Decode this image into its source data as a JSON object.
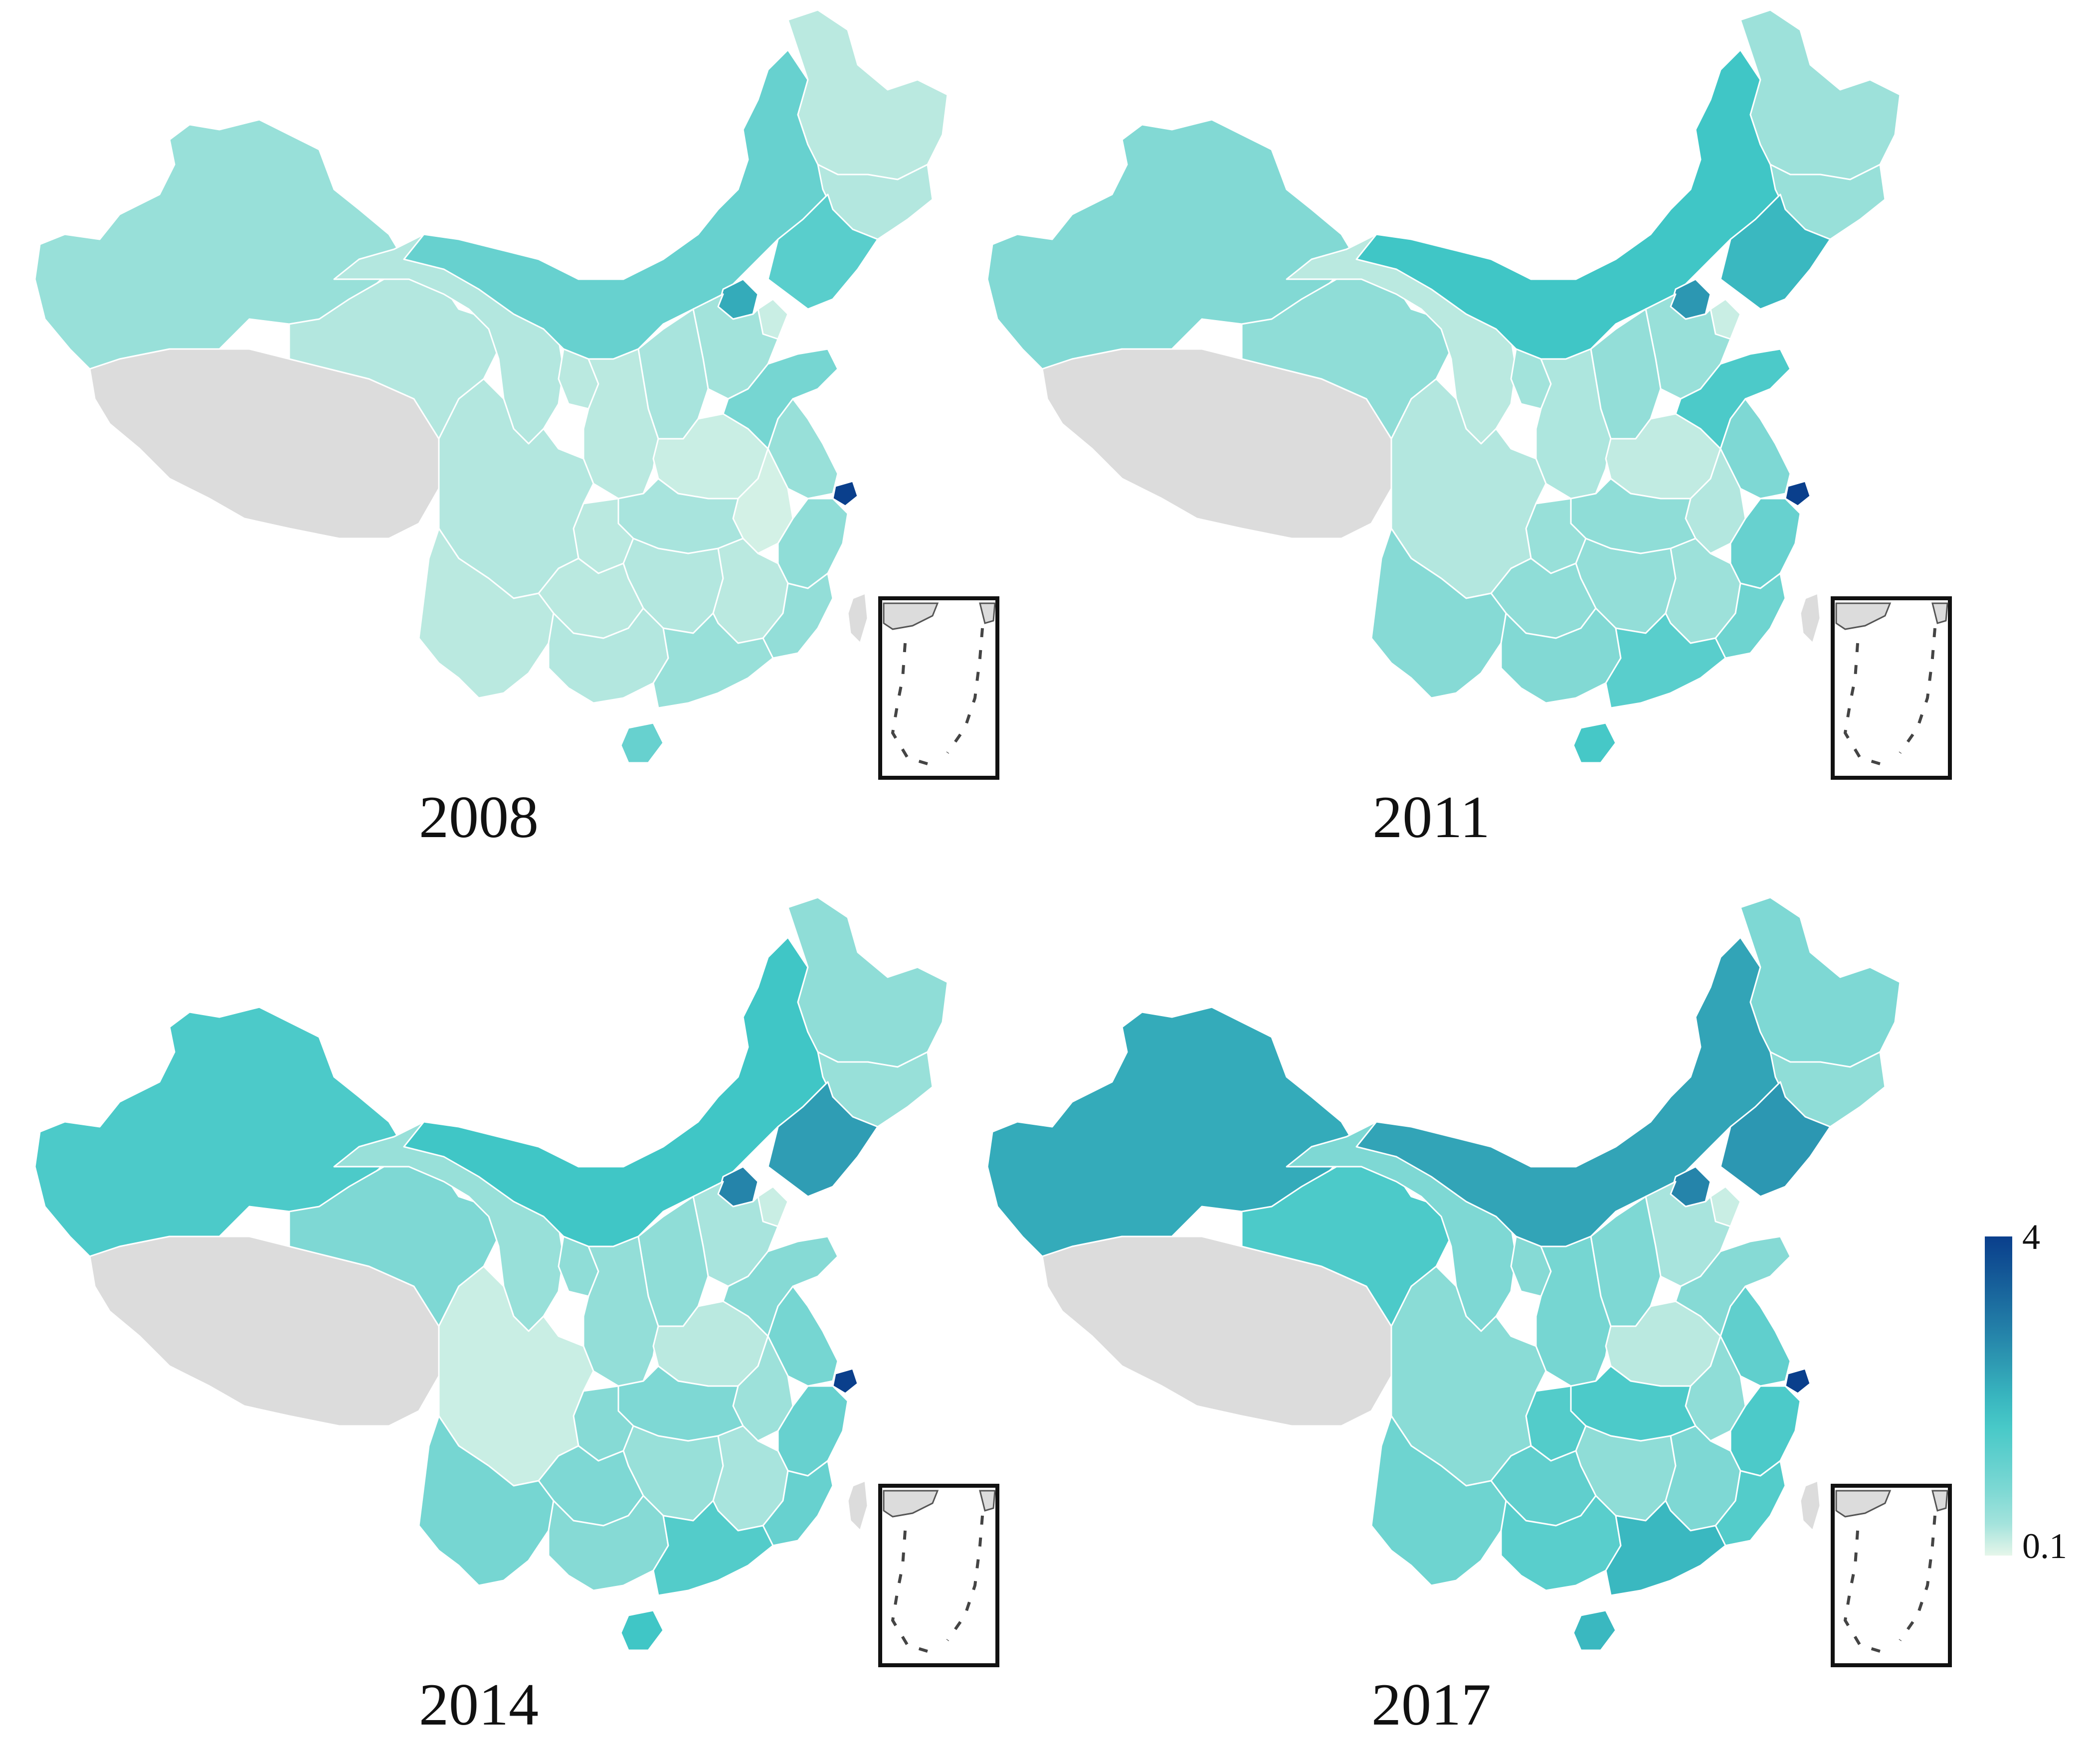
{
  "figure": {
    "panels": [
      {
        "year": "2008",
        "key": "p2008"
      },
      {
        "year": "2011",
        "key": "p2011"
      },
      {
        "year": "2014",
        "key": "p2014"
      },
      {
        "year": "2017",
        "key": "p2017"
      }
    ],
    "legend": {
      "max_label": "4",
      "min_label": "0.1",
      "max_value": 4,
      "min_value": 0.1,
      "color_low": "#e6f6ea",
      "color_mid": "#3fc6c6",
      "color_high": "#0a3f8c"
    },
    "no_data_color": "#dcdcdc",
    "region_values": {
      "p2008": {
        "xinjiang": 0.6,
        "tibet": null,
        "qinghai": 0.35,
        "gansu": 0.35,
        "inner_mongolia": 1.2,
        "heilongjiang": 0.3,
        "jilin": 0.35,
        "liaoning": 1.4,
        "beijing": 2.2,
        "tianjin": 0.2,
        "hebei": 0.5,
        "shanxi": 0.45,
        "shaanxi": 0.3,
        "ningxia": 0.3,
        "henan": 0.2,
        "shandong": 1.0,
        "jiangsu": 0.6,
        "anhui": 0.15,
        "shanghai": 4.0,
        "zhejiang": 0.7,
        "hubei": 0.45,
        "sichuan": 0.35,
        "chongqing": 0.3,
        "hunan": 0.35,
        "jiangxi": 0.3,
        "fujian": 0.65,
        "yunnan": 0.3,
        "guizhou": 0.3,
        "guangxi": 0.35,
        "guangdong": 0.6,
        "hainan": 1.2,
        "taiwan": null
      },
      "p2011": {
        "xinjiang": 0.85,
        "tibet": null,
        "qinghai": 0.7,
        "gansu": 0.3,
        "inner_mongolia": 1.8,
        "heilongjiang": 0.55,
        "jilin": 0.6,
        "liaoning": 2.0,
        "beijing": 2.5,
        "tianjin": 0.2,
        "hebei": 0.6,
        "shanxi": 0.65,
        "shaanxi": 0.4,
        "ningxia": 0.5,
        "henan": 0.25,
        "shandong": 1.6,
        "jiangsu": 0.9,
        "anhui": 0.35,
        "shanghai": 4.0,
        "zhejiang": 1.2,
        "hubei": 0.7,
        "sichuan": 0.35,
        "chongqing": 0.6,
        "hunan": 0.65,
        "jiangxi": 0.55,
        "fujian": 1.1,
        "yunnan": 0.8,
        "guizhou": 0.7,
        "guangxi": 0.85,
        "guangdong": 1.4,
        "hainan": 1.7,
        "taiwan": null
      },
      "p2014": {
        "xinjiang": 1.6,
        "tibet": null,
        "qinghai": 0.9,
        "gansu": 0.6,
        "inner_mongolia": 1.8,
        "heilongjiang": 0.7,
        "jilin": 0.6,
        "liaoning": 2.4,
        "beijing": 2.8,
        "tianjin": 0.2,
        "hebei": 0.45,
        "shanxi": 0.7,
        "shaanxi": 0.65,
        "ningxia": 0.7,
        "henan": 0.3,
        "shandong": 0.8,
        "jiangsu": 1.0,
        "anhui": 0.55,
        "shanshai": 4.0,
        "shanghai": 4.0,
        "zhejiang": 1.2,
        "hubei": 0.9,
        "sichuan": 0.2,
        "chongqing": 0.8,
        "hunan": 0.6,
        "jiangxi": 0.45,
        "fujian": 1.2,
        "yunnan": 1.0,
        "guizhou": 0.9,
        "guangxi": 0.8,
        "guangdong": 1.5,
        "hainan": 1.8,
        "taiwan": null
      },
      "p2017": {
        "xinjiang": 2.2,
        "tibet": null,
        "qinghai": 1.6,
        "gansu": 0.9,
        "inner_mongolia": 2.3,
        "heilongjiang": 0.9,
        "jilin": 0.7,
        "liaoning": 2.5,
        "beijing": 2.8,
        "tianjin": 0.2,
        "hebei": 0.45,
        "shanxi": 0.9,
        "shaanxi": 1.0,
        "ningxia": 0.8,
        "henan": 0.3,
        "shandong": 0.8,
        "jiangsu": 1.3,
        "anhui": 0.7,
        "shanghai": 4.0,
        "zhejiang": 1.6,
        "hubei": 1.6,
        "sichuan": 0.75,
        "chongqing": 1.5,
        "hunan": 0.7,
        "jiangxi": 0.9,
        "fujian": 1.5,
        "yunnan": 1.1,
        "guizhou": 1.3,
        "guangxi": 1.4,
        "guangdong": 2.0,
        "hainan": 2.0,
        "taiwan": null
      }
    }
  }
}
